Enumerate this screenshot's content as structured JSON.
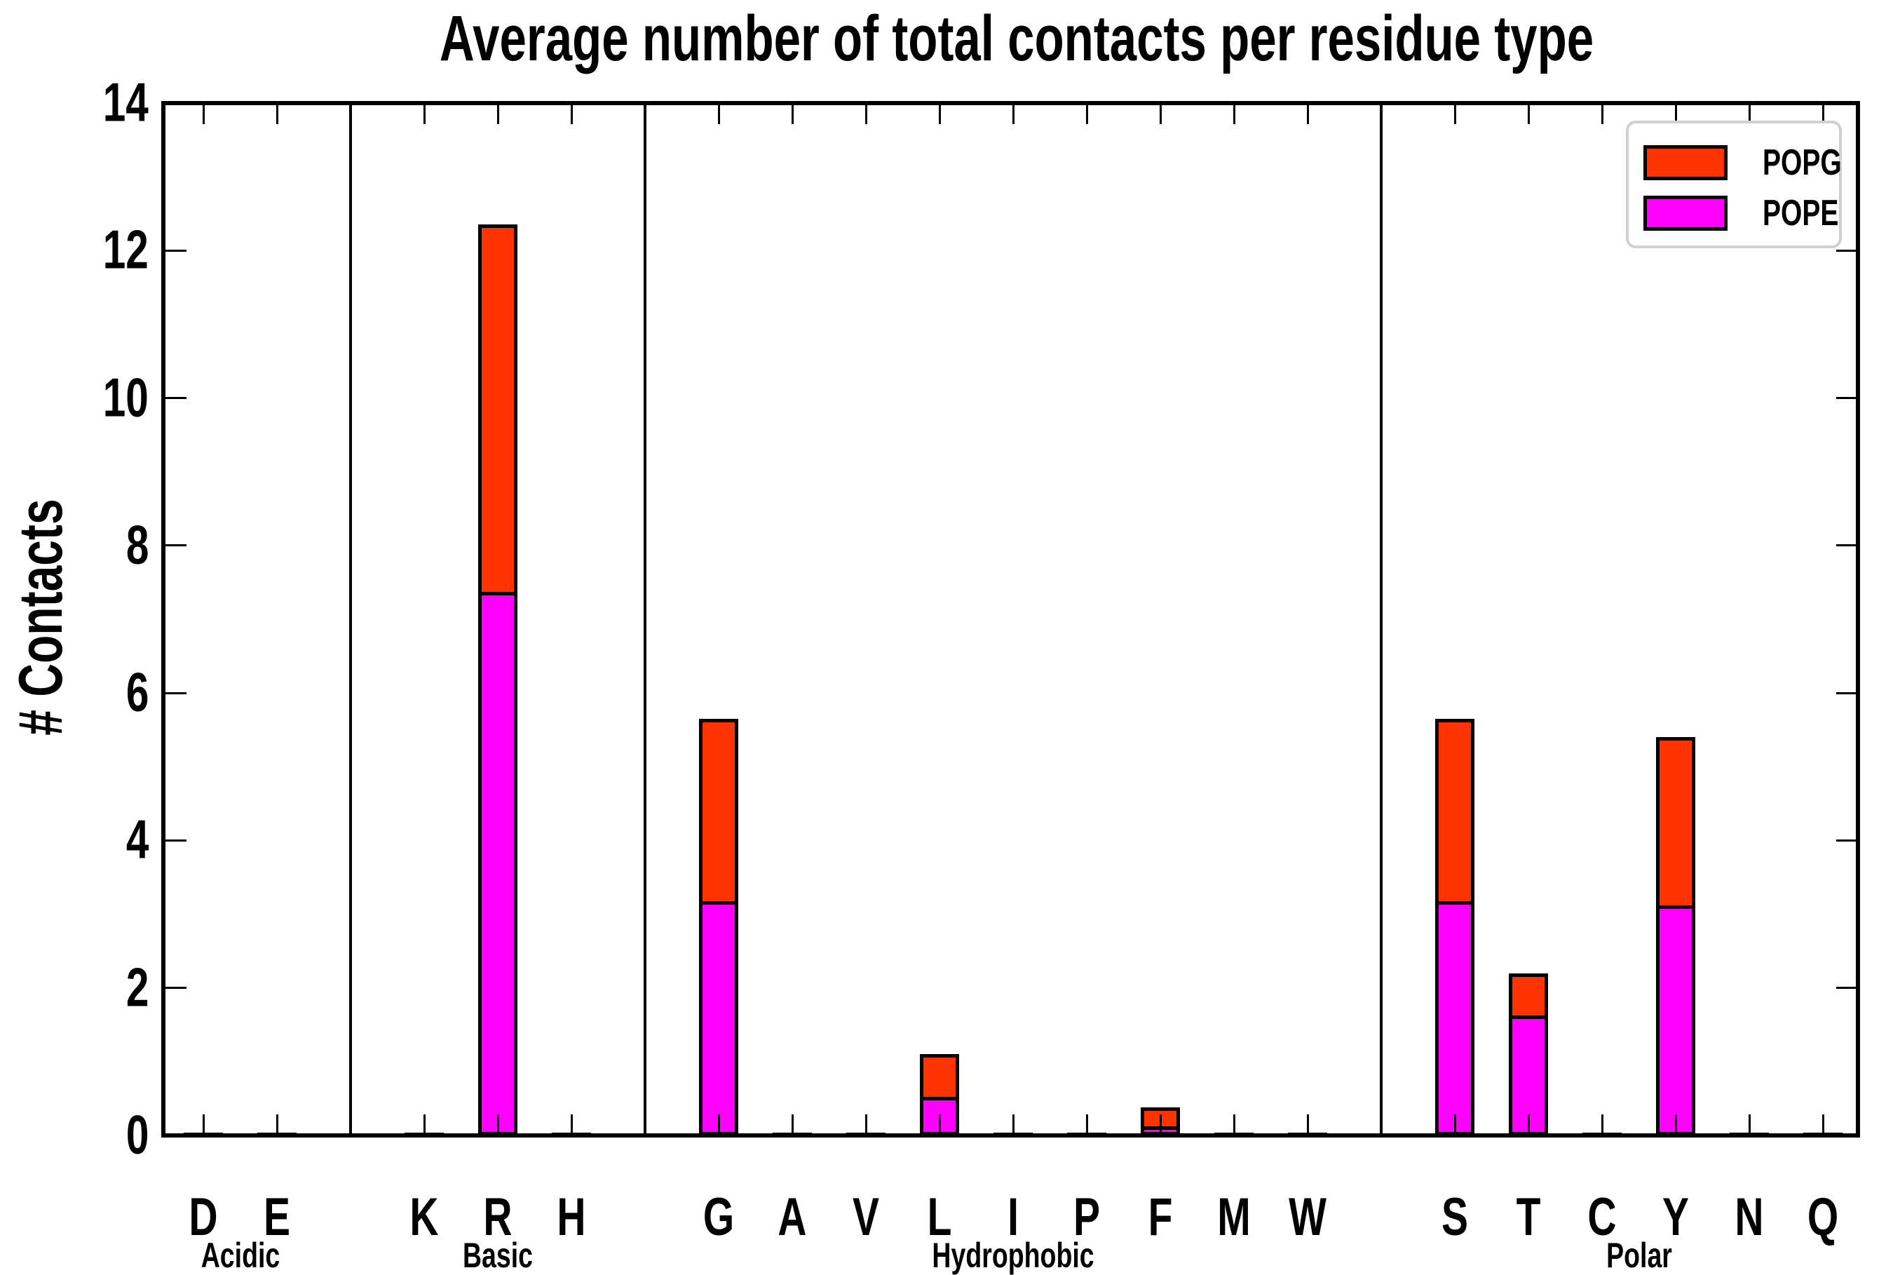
{
  "chart_data": {
    "type": "bar",
    "stacked": true,
    "title": "Average number of total contacts per residue type",
    "ylabel": "# Contacts",
    "xlabel": "",
    "ylim": [
      0,
      14
    ],
    "yticks": [
      0,
      2,
      4,
      6,
      8,
      10,
      12,
      14
    ],
    "grid": false,
    "legend": {
      "position": "upper right",
      "entries": [
        {
          "label": "POPG",
          "color": "#ff3300"
        },
        {
          "label": "POPE",
          "color": "#ff00ff"
        }
      ]
    },
    "groups": [
      {
        "label": "Acidic",
        "residues": [
          "D",
          "E"
        ]
      },
      {
        "label": "Basic",
        "residues": [
          "K",
          "R",
          "H"
        ]
      },
      {
        "label": "Hydrophobic",
        "residues": [
          "G",
          "A",
          "V",
          "L",
          "I",
          "P",
          "F",
          "M",
          "W"
        ]
      },
      {
        "label": "Polar",
        "residues": [
          "S",
          "T",
          "C",
          "Y",
          "N",
          "Q"
        ]
      }
    ],
    "categories": [
      "D",
      "E",
      "K",
      "R",
      "H",
      "G",
      "A",
      "V",
      "L",
      "I",
      "P",
      "F",
      "M",
      "W",
      "S",
      "T",
      "C",
      "Y",
      "N",
      "Q"
    ],
    "series": [
      {
        "name": "POPE",
        "color": "#ff00ff",
        "values": [
          0.02,
          0.02,
          0.02,
          7.35,
          0.02,
          3.15,
          0.02,
          0.02,
          0.5,
          0.02,
          0.02,
          0.1,
          0.02,
          0.02,
          3.15,
          1.6,
          0.02,
          3.1,
          0.02,
          0.02
        ]
      },
      {
        "name": "POPG",
        "color": "#ff3300",
        "values": [
          0.02,
          0.02,
          0.02,
          5.0,
          0.02,
          2.5,
          0.02,
          0.02,
          0.6,
          0.02,
          0.02,
          0.28,
          0.02,
          0.02,
          2.5,
          0.6,
          0.02,
          2.3,
          0.02,
          0.02
        ]
      }
    ]
  }
}
